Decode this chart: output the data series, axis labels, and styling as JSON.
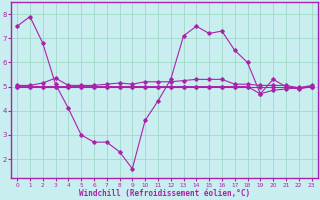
{
  "xlabel": "Windchill (Refroidissement éolien,°C)",
  "background_color": "#c8eef0",
  "grid_color": "#a0d8c8",
  "line_color": "#aa22aa",
  "axis_line_color": "#aa22aa",
  "x_values": [
    0,
    1,
    2,
    3,
    4,
    5,
    6,
    7,
    8,
    9,
    10,
    11,
    12,
    13,
    14,
    15,
    16,
    17,
    18,
    19,
    20,
    21,
    22,
    23
  ],
  "series1": [
    7.5,
    7.9,
    6.8,
    5.1,
    4.1,
    3.0,
    2.7,
    2.7,
    2.3,
    1.6,
    3.6,
    4.4,
    5.3,
    7.1,
    7.5,
    7.2,
    7.3,
    6.5,
    6.0,
    4.7,
    5.3,
    5.0,
    4.9,
    5.0
  ],
  "series2": [
    5.05,
    5.05,
    5.15,
    5.35,
    5.05,
    5.05,
    5.05,
    5.1,
    5.15,
    5.1,
    5.2,
    5.2,
    5.2,
    5.25,
    5.3,
    5.3,
    5.3,
    5.1,
    5.1,
    5.05,
    5.05,
    5.05,
    4.95,
    5.05
  ],
  "series3": [
    5.0,
    5.0,
    5.0,
    5.0,
    5.0,
    5.0,
    5.0,
    5.0,
    5.0,
    5.0,
    5.0,
    5.0,
    5.0,
    5.0,
    5.0,
    5.0,
    5.0,
    5.0,
    5.0,
    5.0,
    5.0,
    5.0,
    5.0,
    5.0
  ],
  "series4": [
    5.0,
    5.0,
    5.0,
    5.0,
    5.0,
    5.0,
    5.0,
    5.0,
    5.0,
    5.0,
    5.0,
    5.0,
    5.0,
    5.0,
    5.0,
    5.0,
    5.0,
    5.0,
    5.0,
    4.7,
    4.85,
    4.9,
    4.95,
    5.0
  ],
  "ylim": [
    1.2,
    8.5
  ],
  "xlim": [
    -0.5,
    23.5
  ],
  "yticks": [
    2,
    3,
    4,
    5,
    6,
    7,
    8
  ],
  "xticks": [
    0,
    1,
    2,
    3,
    4,
    5,
    6,
    7,
    8,
    9,
    10,
    11,
    12,
    13,
    14,
    15,
    16,
    17,
    18,
    19,
    20,
    21,
    22,
    23
  ],
  "xlabel_color": "#aa22aa",
  "tick_color": "#aa22aa",
  "spine_color": "#aa22aa"
}
